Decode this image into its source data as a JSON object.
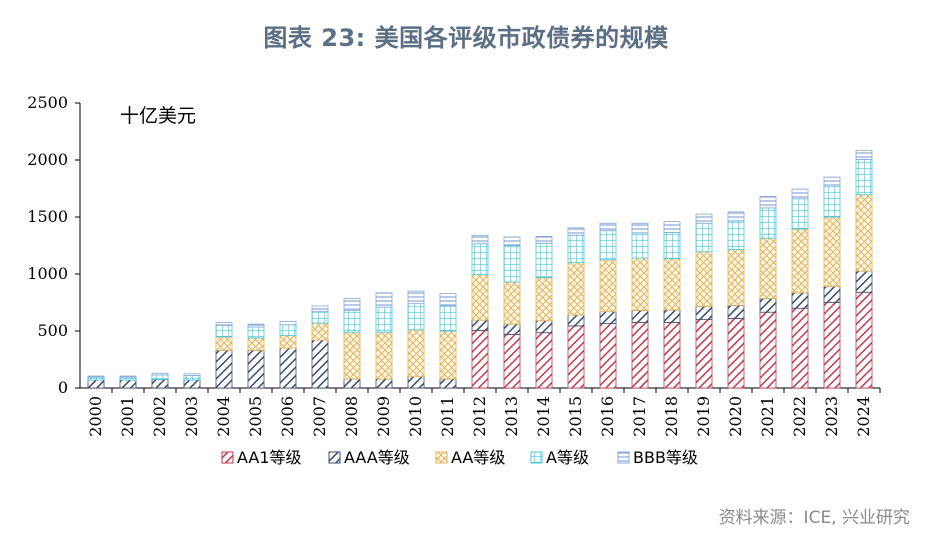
{
  "title": "图表 23: 美国各评级市政债券的规模",
  "source": "资料来源：ICE, 兴业研究",
  "chart_data": {
    "type": "bar",
    "stacked": true,
    "unit_label": "十亿美元",
    "categories": [
      "2000",
      "2001",
      "2002",
      "2003",
      "2004",
      "2005",
      "2006",
      "2007",
      "2008",
      "2009",
      "2010",
      "2011",
      "2012",
      "2013",
      "2014",
      "2015",
      "2016",
      "2017",
      "2018",
      "2019",
      "2020",
      "2021",
      "2022",
      "2023",
      "2024"
    ],
    "ylim": [
      0,
      2500
    ],
    "yticks": [
      0,
      500,
      1000,
      1500,
      2000,
      2500
    ],
    "legend_position": "bottom",
    "series": [
      {
        "name": "AA1等级",
        "color": "#c0394b",
        "pattern": "diag",
        "values": [
          0,
          0,
          0,
          0,
          0,
          0,
          0,
          0,
          0,
          0,
          0,
          0,
          505,
          470,
          485,
          545,
          565,
          575,
          575,
          600,
          610,
          665,
          700,
          750,
          840
        ]
      },
      {
        "name": "AAA等级",
        "color": "#3b4a6b",
        "pattern": "diag",
        "values": [
          70,
          70,
          75,
          70,
          330,
          330,
          350,
          420,
          80,
          80,
          100,
          80,
          90,
          90,
          105,
          95,
          105,
          105,
          110,
          115,
          115,
          120,
          135,
          140,
          185
        ]
      },
      {
        "name": "AA等级",
        "color": "#e2b35a",
        "pattern": "cross",
        "values": [
          0,
          0,
          0,
          0,
          120,
          110,
          110,
          150,
          410,
          410,
          410,
          420,
          400,
          370,
          380,
          460,
          455,
          460,
          450,
          480,
          490,
          530,
          560,
          610,
          670
        ]
      },
      {
        "name": "A等级",
        "color": "#4cc3d9",
        "pattern": "grid",
        "values": [
          25,
          25,
          40,
          40,
          100,
          95,
          95,
          100,
          190,
          220,
          230,
          220,
          270,
          320,
          300,
          240,
          255,
          220,
          230,
          250,
          250,
          265,
          265,
          280,
          310
        ]
      },
      {
        "name": "BBB等级",
        "color": "#8aa8d6",
        "pattern": "hlines",
        "values": [
          10,
          10,
          15,
          15,
          25,
          25,
          30,
          50,
          105,
          125,
          110,
          110,
          75,
          75,
          60,
          65,
          65,
          85,
          95,
          80,
          80,
          100,
          85,
          70,
          80
        ]
      }
    ]
  }
}
